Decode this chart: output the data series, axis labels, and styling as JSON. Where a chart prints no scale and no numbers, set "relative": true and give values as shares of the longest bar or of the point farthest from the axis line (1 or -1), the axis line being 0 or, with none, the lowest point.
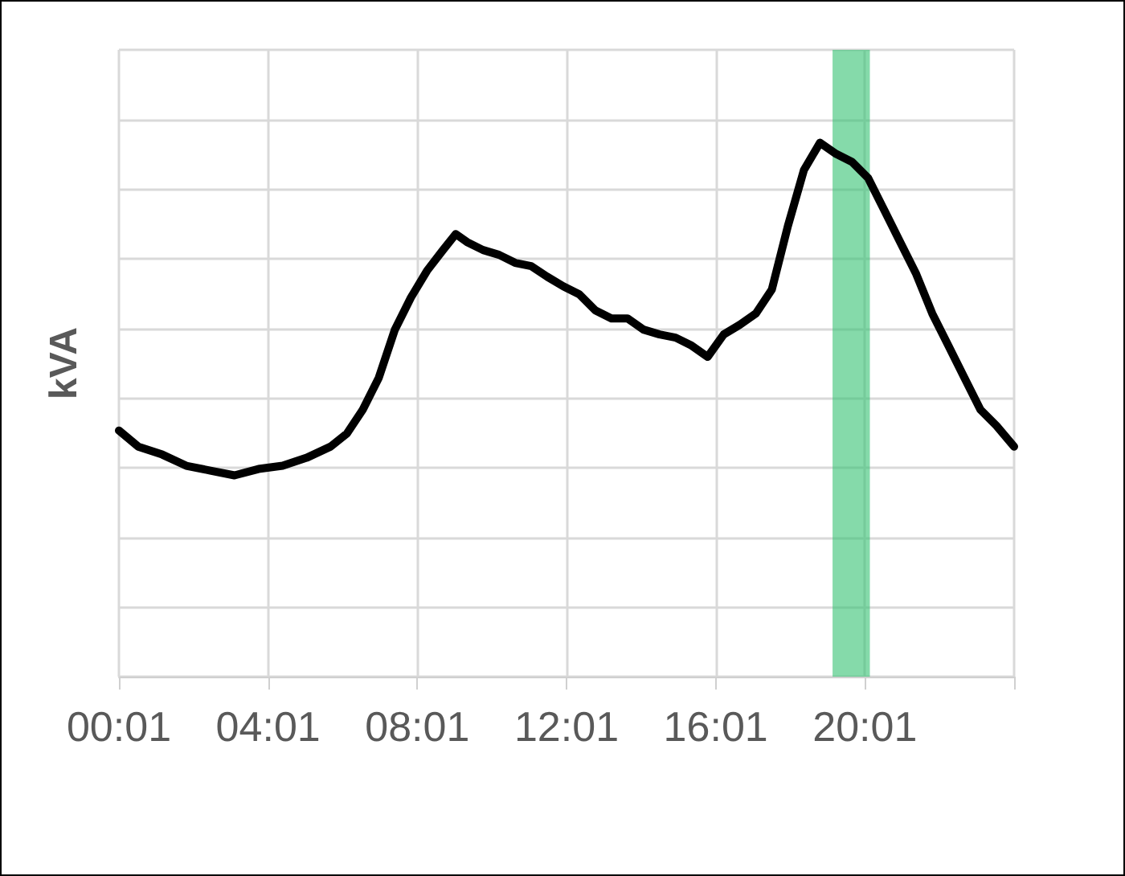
{
  "chart_data": {
    "type": "line",
    "ylabel": "kVA",
    "relative": true,
    "grid": true,
    "marker": "none",
    "line_style": "solid",
    "xlim": [
      0.017,
      24.017
    ],
    "xticks": [
      {
        "value": 0.017,
        "label": "00:01"
      },
      {
        "value": 4.017,
        "label": "04:01"
      },
      {
        "value": 8.017,
        "label": "08:01"
      },
      {
        "value": 12.017,
        "label": "12:01"
      },
      {
        "value": 16.017,
        "label": "16:01"
      },
      {
        "value": 20.017,
        "label": "20:01"
      },
      {
        "value": 24.017,
        "label": null
      }
    ],
    "bands": [
      {
        "axis": "x",
        "from": 19.15,
        "to": 20.15,
        "label": null,
        "color": "#33c172"
      }
    ],
    "series": [
      {
        "color": "#000000",
        "x": [
          0.017,
          0.533,
          1.178,
          1.823,
          2.469,
          3.114,
          3.759,
          4.404,
          5.049,
          5.694,
          6.125,
          6.555,
          6.985,
          7.415,
          7.845,
          8.275,
          8.705,
          9.049,
          9.35,
          9.78,
          10.21,
          10.64,
          11.07,
          11.501,
          11.931,
          12.361,
          12.791,
          13.221,
          13.651,
          14.081,
          14.511,
          14.942,
          15.372,
          15.802,
          16.232,
          16.662,
          17.092,
          17.522,
          17.952,
          18.383,
          18.813,
          19.247,
          19.673,
          20.103,
          20.533,
          20.963,
          21.393,
          21.823,
          22.254,
          22.684,
          23.114,
          23.544,
          24.017
        ],
        "values": [
          0.461,
          0.431,
          0.416,
          0.395,
          0.386,
          0.377,
          0.389,
          0.395,
          0.41,
          0.431,
          0.455,
          0.5,
          0.56,
          0.65,
          0.71,
          0.76,
          0.799,
          0.829,
          0.814,
          0.799,
          0.79,
          0.775,
          0.769,
          0.749,
          0.731,
          0.716,
          0.686,
          0.671,
          0.671,
          0.65,
          0.641,
          0.635,
          0.62,
          0.599,
          0.641,
          0.659,
          0.68,
          0.725,
          0.844,
          0.949,
          1,
          0.979,
          0.964,
          0.934,
          0.874,
          0.814,
          0.754,
          0.68,
          0.62,
          0.56,
          0.5,
          0.47,
          0.431
        ]
      }
    ]
  }
}
